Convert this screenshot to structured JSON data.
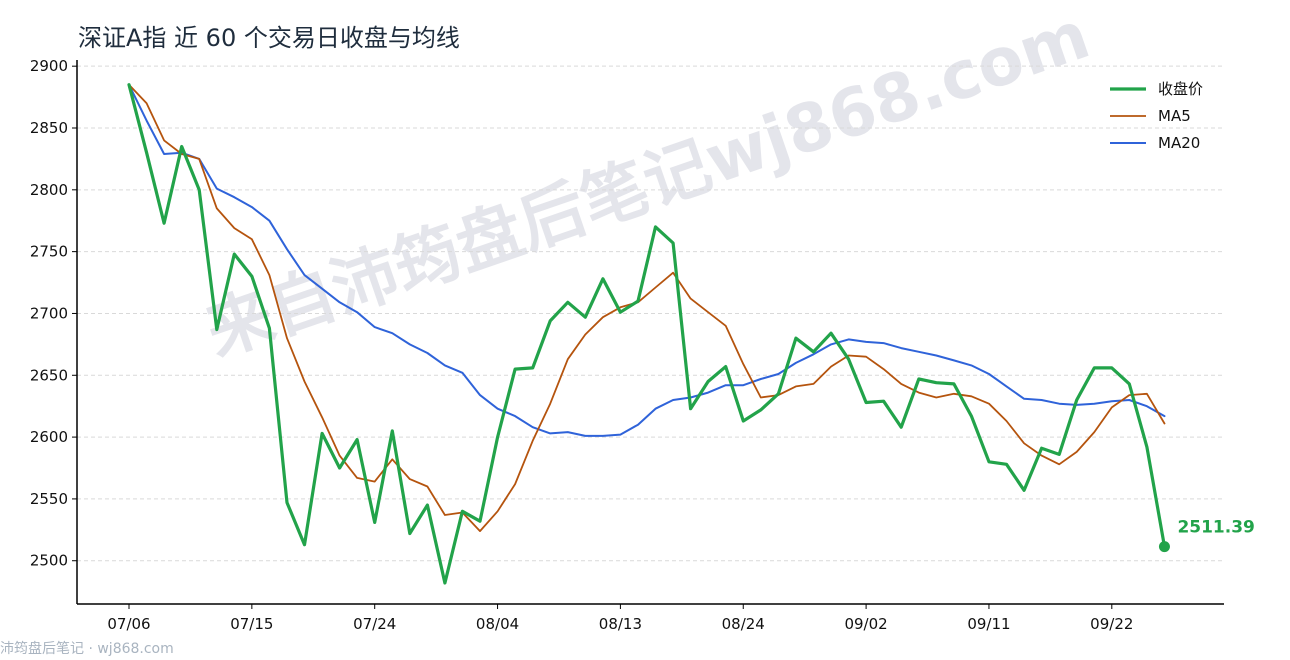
{
  "title": "深证A指 近 60 个交易日收盘与均线",
  "watermark": "来自沛筠盘后笔记wj868.com",
  "footer": "沛筠盘后笔记 · wj868.com",
  "colors": {
    "close": "#22a34a",
    "ma5": "#b5540e",
    "ma20": "#2f63d9",
    "grid": "#d9d9d9",
    "axis": "#000000",
    "watermark": "#c9ccd8"
  },
  "chart_data": {
    "type": "line",
    "title": "深证A指 近 60 个交易日收盘与均线",
    "xlabel": "",
    "ylabel": "",
    "ylim": [
      2465,
      2905
    ],
    "yticks": [
      2500,
      2550,
      2600,
      2650,
      2700,
      2750,
      2800,
      2850,
      2900
    ],
    "xticks": [
      {
        "index": 0,
        "label": "07/06"
      },
      {
        "index": 7,
        "label": "07/15"
      },
      {
        "index": 14,
        "label": "07/24"
      },
      {
        "index": 21,
        "label": "08/04"
      },
      {
        "index": 28,
        "label": "08/13"
      },
      {
        "index": 35,
        "label": "08/24"
      },
      {
        "index": 42,
        "label": "09/02"
      },
      {
        "index": 49,
        "label": "09/11"
      },
      {
        "index": 56,
        "label": "09/22"
      }
    ],
    "grid": true,
    "legend_position": "top-right",
    "last_value_label": "2511.39",
    "series": [
      {
        "name": "收盘价",
        "values": [
          2885,
          2830,
          2773,
          2835,
          2800,
          2687,
          2748,
          2730,
          2688,
          2547,
          2513,
          2603,
          2575,
          2598,
          2531,
          2605,
          2522,
          2545,
          2482,
          2540,
          2532,
          2600,
          2655,
          2656,
          2694,
          2709,
          2697,
          2728,
          2701,
          2710,
          2770,
          2757,
          2623,
          2645,
          2657,
          2613,
          2622,
          2635,
          2680,
          2669,
          2684,
          2663,
          2628,
          2629,
          2608,
          2647,
          2644,
          2643,
          2617,
          2580,
          2578,
          2557,
          2591,
          2586,
          2630,
          2656,
          2656,
          2643,
          2592,
          2511.39
        ]
      },
      {
        "name": "MA5",
        "values": [
          2885,
          2870,
          2840,
          2829,
          2825,
          2785,
          2769,
          2760,
          2731,
          2680,
          2645,
          2616,
          2585,
          2567,
          2564,
          2582,
          2566,
          2560,
          2537,
          2539,
          2524,
          2540,
          2562,
          2597,
          2627,
          2663,
          2683,
          2697,
          2705,
          2709,
          2721,
          2733,
          2712,
          2701,
          2690,
          2659,
          2632,
          2634,
          2641,
          2643,
          2657,
          2666,
          2665,
          2655,
          2643,
          2636,
          2632,
          2635,
          2633,
          2627,
          2613,
          2595,
          2585,
          2578,
          2588,
          2604,
          2624,
          2634,
          2635,
          2611
        ]
      },
      {
        "name": "MA20",
        "values": [
          2885,
          2856,
          2829,
          2830,
          2825,
          2801,
          2794,
          2786,
          2775,
          2752,
          2731,
          2720,
          2709,
          2701,
          2689,
          2684,
          2675,
          2668,
          2658,
          2652,
          2634,
          2623,
          2617,
          2608,
          2603,
          2604,
          2601,
          2601,
          2602,
          2610,
          2623,
          2630,
          2632,
          2636,
          2642,
          2642,
          2647,
          2651,
          2660,
          2667,
          2675,
          2679,
          2677,
          2676,
          2672,
          2669,
          2666,
          2662,
          2658,
          2651,
          2641,
          2631,
          2630,
          2627,
          2626,
          2627,
          2629,
          2630,
          2625,
          2617
        ]
      }
    ]
  }
}
